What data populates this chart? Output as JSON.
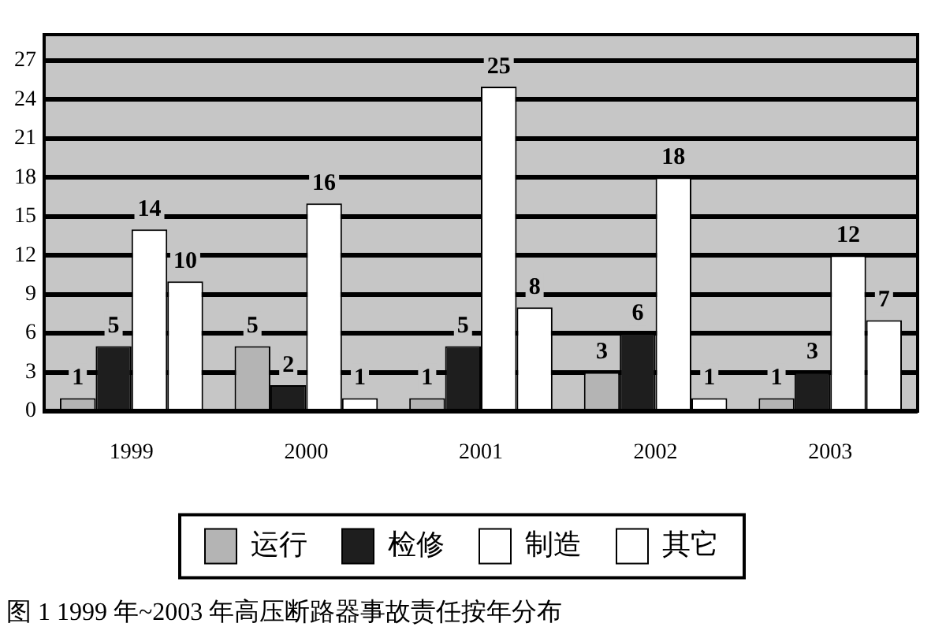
{
  "chart_data": {
    "type": "bar",
    "title": "图 1 1999 年~2003 年高压断路器事故责任按年分布",
    "categories": [
      "1999",
      "2000",
      "2001",
      "2002",
      "2003"
    ],
    "series": [
      {
        "name": "运行",
        "color": "#b4b4b4",
        "values": [
          1,
          5,
          1,
          3,
          1
        ]
      },
      {
        "name": "检修",
        "color": "#1e1e1e",
        "values": [
          5,
          2,
          5,
          6,
          3
        ]
      },
      {
        "name": "制造",
        "color": "#ffffff",
        "values": [
          14,
          16,
          25,
          18,
          12
        ]
      },
      {
        "name": "其它",
        "color": "#ffffff",
        "values": [
          10,
          1,
          8,
          1,
          7
        ]
      }
    ],
    "ylim": [
      0,
      29
    ],
    "yticks": [
      0,
      3,
      6,
      9,
      12,
      15,
      18,
      21,
      24,
      27
    ],
    "grid": "y",
    "legend": "bottom",
    "data_labels": true
  }
}
